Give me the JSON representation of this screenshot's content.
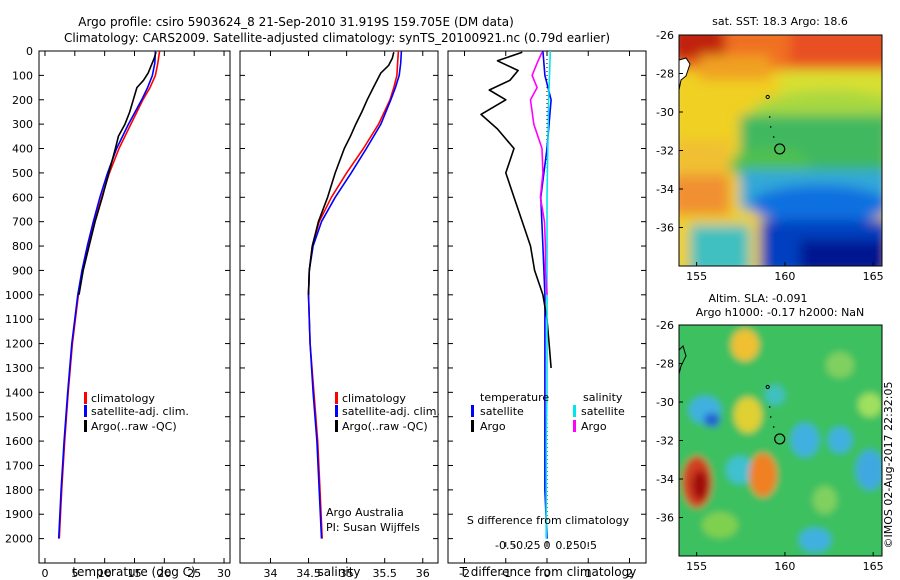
{
  "header": {
    "line1": "Argo profile: csiro 5903624_8 21-Sep-2010 31.919S 159.705E (DM data)",
    "line2": "Climatology: CARS2009. Satellite-adjusted climatology: synTS_20100921.nc (0.79d earlier)"
  },
  "credit": {
    "institution": "Argo Australia",
    "pi": "PI: Susan Wijffels",
    "stamp": "©IMOS 02-Aug-2017 22:32:05"
  },
  "colors": {
    "climatology": "#ff0000",
    "satellite": "#0000ff",
    "argo": "#000000",
    "salinity_satellite": "#00e5ee",
    "salinity_argo": "#ff00ff"
  },
  "chart_data": [
    {
      "type": "line",
      "panel": "temperature",
      "xlabel": "temperature (deg C)",
      "ylabel": "",
      "xlim": [
        -1,
        31
      ],
      "ylim": [
        2100,
        0
      ],
      "xticks": [
        0,
        5,
        10,
        15,
        20,
        25,
        30
      ],
      "yticks": [
        0,
        100,
        200,
        300,
        400,
        500,
        600,
        700,
        800,
        900,
        1000,
        1100,
        1200,
        1300,
        1400,
        1500,
        1600,
        1700,
        1800,
        1900,
        2000
      ],
      "legend": {
        "placement": "bottom-center",
        "entries": [
          "climatology",
          "satellite-adj. clim.",
          "Argo(..raw -QC)"
        ]
      },
      "series": [
        {
          "name": "climatology",
          "color": "#ff0000",
          "y": [
            0,
            50,
            100,
            150,
            200,
            300,
            400,
            500,
            600,
            700,
            800,
            900,
            1000,
            1200,
            1400,
            1600,
            1800,
            2000
          ],
          "x": [
            19.2,
            18.9,
            18.5,
            17.6,
            16.4,
            14.4,
            12.4,
            10.8,
            9.5,
            8.3,
            7.3,
            6.3,
            5.6,
            4.6,
            3.9,
            3.3,
            2.8,
            2.4
          ]
        },
        {
          "name": "satellite-adj. clim.",
          "color": "#0000ff",
          "y": [
            0,
            50,
            100,
            150,
            200,
            300,
            400,
            500,
            600,
            700,
            800,
            900,
            1000,
            1200,
            1400,
            1600,
            1800,
            2000
          ],
          "x": [
            18.5,
            18.4,
            18.0,
            17.2,
            16.2,
            14.0,
            12.0,
            10.5,
            9.2,
            8.1,
            7.1,
            6.2,
            5.5,
            4.5,
            3.8,
            3.2,
            2.7,
            2.3
          ]
        },
        {
          "name": "Argo(..raw -QC)",
          "color": "#000000",
          "y": [
            5,
            30,
            60,
            90,
            120,
            150,
            200,
            250,
            300,
            350,
            400,
            500,
            600,
            700,
            800,
            900,
            1000
          ],
          "x": [
            18.6,
            18.3,
            17.8,
            17.3,
            16.5,
            15.4,
            14.8,
            14.2,
            13.4,
            12.3,
            11.8,
            10.7,
            9.6,
            8.4,
            7.4,
            6.4,
            5.7
          ]
        }
      ]
    },
    {
      "type": "line",
      "panel": "salinity",
      "xlabel": "salinity",
      "ylabel": "",
      "xlim": [
        33.6,
        36.2
      ],
      "ylim": [
        2100,
        0
      ],
      "xticks": [
        34,
        34.5,
        35,
        35.5,
        36
      ],
      "legend": {
        "placement": "bottom-center",
        "entries": [
          "climatology",
          "satellite-adj. clim.",
          "Argo(..raw -QC)"
        ]
      },
      "series": [
        {
          "name": "climatology",
          "color": "#ff0000",
          "y": [
            0,
            50,
            100,
            150,
            200,
            300,
            400,
            500,
            600,
            700,
            800,
            900,
            1000,
            1200,
            1400,
            1600,
            1800,
            2000
          ],
          "x": [
            35.68,
            35.67,
            35.66,
            35.62,
            35.57,
            35.42,
            35.22,
            35.0,
            34.8,
            34.64,
            34.55,
            34.51,
            34.5,
            34.52,
            34.57,
            34.62,
            34.65,
            34.68
          ]
        },
        {
          "name": "satellite-adj. clim.",
          "color": "#0000ff",
          "y": [
            0,
            50,
            100,
            150,
            200,
            300,
            400,
            500,
            600,
            700,
            800,
            900,
            1000,
            1200,
            1400,
            1600,
            1800,
            2000
          ],
          "x": [
            35.72,
            35.71,
            35.69,
            35.64,
            35.58,
            35.45,
            35.26,
            35.06,
            34.85,
            34.67,
            34.56,
            34.51,
            34.5,
            34.52,
            34.56,
            34.61,
            34.64,
            34.67
          ]
        },
        {
          "name": "Argo(..raw -QC)",
          "color": "#000000",
          "y": [
            5,
            30,
            60,
            90,
            120,
            150,
            200,
            250,
            300,
            350,
            400,
            500,
            600,
            700,
            800,
            900,
            1000
          ],
          "x": [
            35.62,
            35.6,
            35.55,
            35.45,
            35.4,
            35.35,
            35.27,
            35.2,
            35.12,
            35.05,
            34.97,
            34.85,
            34.75,
            34.63,
            34.55,
            34.51,
            34.5
          ]
        }
      ]
    },
    {
      "type": "line",
      "panel": "difference",
      "xlabel": "T difference from climatology",
      "x2label": "S difference from climatology",
      "ylabel": "",
      "xlim": [
        -2.4,
        2.4
      ],
      "ylim": [
        2100,
        0
      ],
      "xticks": [
        -2,
        -1,
        0,
        1,
        2
      ],
      "x2ticks_values": [
        -0.5,
        -0.25,
        0,
        0.25,
        0.5
      ],
      "x2ticks": [
        "-0.5",
        "-0.25",
        "0",
        "0.25",
        "0.5"
      ],
      "legend": {
        "placement": "bottom-center",
        "headers": [
          "temperature",
          "salinity"
        ],
        "entries": [
          "satellite",
          "Argo",
          "satellite",
          "Argo"
        ]
      },
      "series": [
        {
          "name": "satellite",
          "group": "temperature",
          "color": "#0000ff",
          "y": [
            0,
            100,
            200,
            400,
            600,
            800,
            1000,
            1200,
            1400,
            1600,
            1800,
            2000
          ],
          "x": [
            -0.1,
            -0.05,
            0.1,
            0.0,
            -0.15,
            -0.1,
            -0.05,
            -0.05,
            -0.05,
            -0.05,
            -0.05,
            0.0
          ]
        },
        {
          "name": "Argo",
          "group": "temperature",
          "color": "#000000",
          "y": [
            5,
            40,
            80,
            120,
            160,
            200,
            260,
            320,
            400,
            500,
            600,
            700,
            800,
            900,
            1000,
            1100,
            1200,
            1300
          ],
          "x": [
            -0.6,
            -1.2,
            -0.7,
            -0.9,
            -1.4,
            -1.0,
            -1.6,
            -1.2,
            -0.8,
            -1.0,
            -0.8,
            -0.6,
            -0.4,
            -0.3,
            -0.1,
            0.0,
            0.05,
            0.1
          ]
        },
        {
          "name": "satellite",
          "group": "salinity",
          "color": "#00e5ee",
          "y": [
            0,
            100,
            200,
            400,
            600,
            800,
            1000,
            1200,
            1400,
            1600,
            1800,
            2000
          ],
          "x": [
            0.04,
            0.03,
            0.02,
            0.01,
            0.0,
            0.0,
            0.0,
            0.0,
            0.0,
            -0.01,
            -0.01,
            -0.01
          ]
        },
        {
          "name": "Argo",
          "group": "salinity",
          "color": "#ff00ff",
          "y": [
            5,
            50,
            100,
            150,
            200,
            300,
            400,
            500,
            600,
            700,
            800,
            900,
            1000
          ],
          "x": [
            -0.06,
            -0.12,
            -0.18,
            -0.12,
            -0.2,
            -0.16,
            -0.06,
            -0.05,
            -0.08,
            -0.03,
            -0.02,
            -0.02,
            0.0
          ]
        }
      ]
    },
    {
      "type": "heatmap",
      "panel": "sst-map",
      "title": "sat. SST: 18.3 Argo: 18.6",
      "xlim": [
        154,
        165.5
      ],
      "ylim": [
        -38,
        -26
      ],
      "xticks": [
        155,
        160,
        165
      ],
      "yticks": [
        -26,
        -28,
        -30,
        -32,
        -34,
        -36
      ],
      "marker": {
        "lon": 159.705,
        "lat": -31.919
      }
    },
    {
      "type": "heatmap",
      "panel": "sla-map",
      "title_line1": "Altim. SLA: -0.091",
      "title_line2": "Argo h1000: -0.17 h2000: NaN",
      "xlim": [
        154,
        165.5
      ],
      "ylim": [
        -38,
        -26
      ],
      "xticks": [
        155,
        160,
        165
      ],
      "yticks": [
        -26,
        -28,
        -30,
        -32,
        -34,
        -36
      ],
      "marker": {
        "lon": 159.705,
        "lat": -31.919
      }
    }
  ]
}
